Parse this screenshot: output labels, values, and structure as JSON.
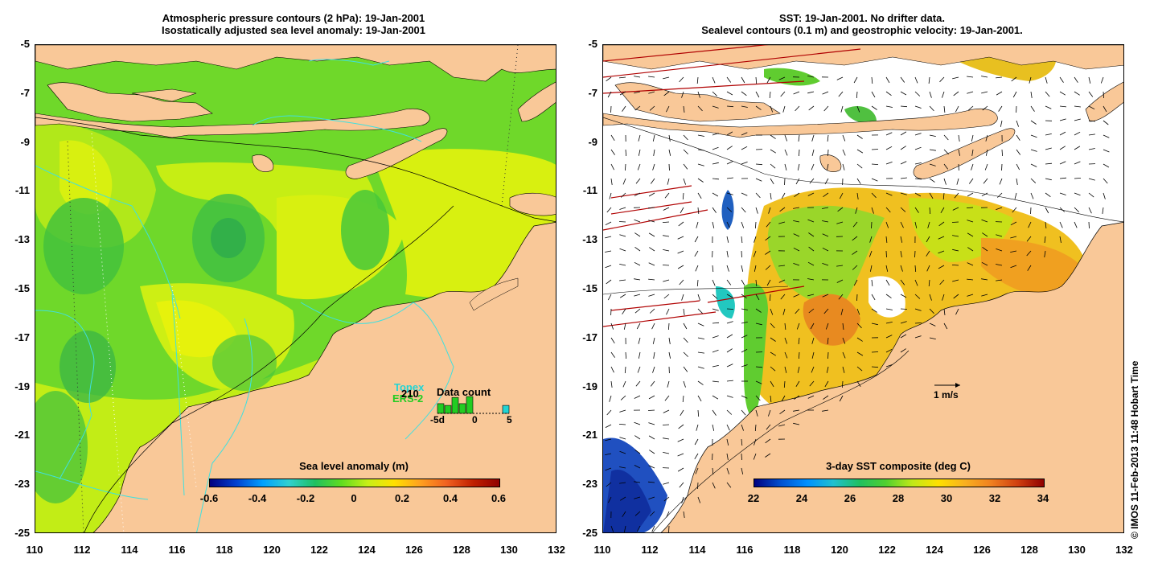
{
  "left_panel": {
    "title_line1": "Atmospheric pressure contours (2 hPa): 19-Jan-2001",
    "title_line2": "Isostatically adjusted sea level anomaly: 19-Jan-2001",
    "colorbar_label": "Sea level anomaly (m)",
    "colorbar_ticks": [
      "-0.6",
      "-0.4",
      "-0.2",
      "0",
      "0.2",
      "0.4",
      "0.6"
    ],
    "satellite_labels": [
      "Topex",
      "ERS-2"
    ],
    "data_count_title": "Data count",
    "data_count_value": "210",
    "data_count_axis": [
      "-5d",
      "0",
      "5"
    ],
    "data_count_bars": [
      {
        "day": -5,
        "count": 0.55
      },
      {
        "day": -4,
        "count": 0.45
      },
      {
        "day": -3,
        "count": 0.9
      },
      {
        "day": -2,
        "count": 0.55
      },
      {
        "day": -1,
        "count": 0.95
      },
      {
        "day": 4,
        "count": 0.45
      }
    ]
  },
  "right_panel": {
    "title_line1": "SST: 19-Jan-2001. No drifter data.",
    "title_line2": "Sealevel contours (0.1 m) and geostrophic velocity: 19-Jan-2001.",
    "colorbar_label": "3-day SST composite (deg C)",
    "colorbar_ticks": [
      "22",
      "24",
      "26",
      "28",
      "30",
      "32",
      "34"
    ],
    "velocity_scale_label": "1 m/s"
  },
  "y_ticks": [
    "-5",
    "-7",
    "-9",
    "-11",
    "-13",
    "-15",
    "-17",
    "-19",
    "-21",
    "-23",
    "-25"
  ],
  "x_ticks": [
    "110",
    "112",
    "114",
    "116",
    "118",
    "120",
    "122",
    "124",
    "126",
    "128",
    "130",
    "132"
  ],
  "copyright": "© IMOS 11-Feb-2013 11:48 Hobart Time",
  "colors": {
    "land": "#f9c898",
    "sea_green": "#66dd22",
    "sea_yellow": "#d8f010",
    "velocity_arrow": "#000000",
    "wind_streak": "#b00000"
  }
}
